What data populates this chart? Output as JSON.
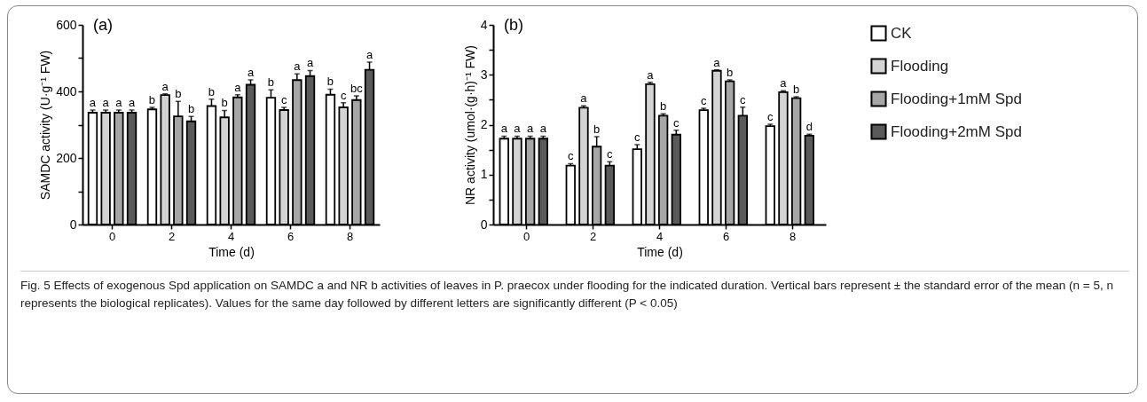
{
  "chart_data": [
    {
      "type": "bar",
      "title": "(a)",
      "xlabel": "Time (d)",
      "ylabel": "SAMDC activity (U·g⁻¹ FW)",
      "categories": [
        "0",
        "2",
        "4",
        "6",
        "8"
      ],
      "ylim": [
        0,
        600
      ],
      "yticks": [
        0,
        {
          "value": 100,
          "label": null
        },
        200,
        {
          "value": 300,
          "label": null
        },
        400,
        {
          "value": 500,
          "label": null
        },
        600
      ],
      "grid": false,
      "legend": "right",
      "series": [
        {
          "name": "CK",
          "color": "#ffffff",
          "values": [
            336,
            346,
            356,
            381,
            390
          ],
          "errors": [
            8,
            6,
            21,
            24,
            17
          ],
          "value_labels": [
            "a",
            "b",
            "b",
            "b",
            "b"
          ]
        },
        {
          "name": "Flooding",
          "color": "#d4d4d4",
          "values": [
            336,
            389,
            322,
            344,
            352
          ],
          "errors": [
            8,
            4,
            21,
            8,
            14
          ],
          "value_labels": [
            "a",
            "a",
            "b",
            "c",
            "c"
          ]
        },
        {
          "name": "Flooding+1mM Spd",
          "color": "#a6a6a6",
          "values": [
            336,
            325,
            382,
            434,
            374
          ],
          "errors": [
            8,
            45,
            8,
            19,
            13
          ],
          "value_labels": [
            "a",
            "b",
            "a",
            "a",
            "bc"
          ]
        },
        {
          "name": "Flooding+2mM Spd",
          "color": "#5a5a5a",
          "values": [
            336,
            310,
            420,
            446,
            465
          ],
          "errors": [
            8,
            15,
            15,
            17,
            23
          ],
          "value_labels": [
            "a",
            "b",
            "a",
            "a",
            "a"
          ]
        }
      ],
      "annotations": [
        "Fig. 5 Effects of exogenous Spd application on SAMDC a and NR b activities of leaves in P. praecox under flooding for the indicated duration. Vertical bars represent ± the standard error of the mean (n = 5, n represents the biological replicates). Values for the same day followed by different letters are significantly different (P < 0.05)"
      ]
    },
    {
      "type": "bar",
      "title": "(b)",
      "xlabel": "Time (d)",
      "ylabel": "NR activity (umol·(g·h)⁻¹ FW)",
      "categories": [
        "0",
        "2",
        "4",
        "6",
        "8"
      ],
      "ylim": [
        0,
        4
      ],
      "yticks": [
        0,
        {
          "value": 0.5,
          "label": null
        },
        1,
        {
          "value": 1.5,
          "label": null
        },
        2,
        {
          "value": 2.5,
          "label": null
        },
        3,
        {
          "value": 3.5,
          "label": null
        },
        4
      ],
      "grid": false,
      "legend": "right",
      "series": [
        {
          "name": "CK",
          "color": "#ffffff",
          "values": [
            1.72,
            1.18,
            1.51,
            2.29,
            1.97
          ],
          "errors": [
            0.05,
            0.04,
            0.09,
            0.04,
            0.04
          ],
          "value_labels": [
            "a",
            "c",
            "c",
            "c",
            "c"
          ]
        },
        {
          "name": "Flooding",
          "color": "#d4d4d4",
          "values": [
            1.72,
            2.34,
            2.81,
            3.08,
            2.65
          ],
          "errors": [
            0.05,
            0.04,
            0.04,
            0.02,
            0.03
          ],
          "value_labels": [
            "a",
            "a",
            "a",
            "a",
            "a"
          ]
        },
        {
          "name": "Flooding+1mM Spd",
          "color": "#a6a6a6",
          "values": [
            1.72,
            1.56,
            2.18,
            2.87,
            2.53
          ],
          "errors": [
            0.05,
            0.2,
            0.04,
            0.03,
            0.03
          ],
          "value_labels": [
            "a",
            "b",
            "b",
            "b",
            "b"
          ]
        },
        {
          "name": "Flooding+2mM Spd",
          "color": "#5a5a5a",
          "values": [
            1.72,
            1.18,
            1.8,
            2.18,
            1.78
          ],
          "errors": [
            0.05,
            0.08,
            0.09,
            0.17,
            0.03
          ],
          "value_labels": [
            "a",
            "c",
            "c",
            "c",
            "d"
          ]
        }
      ]
    }
  ]
}
